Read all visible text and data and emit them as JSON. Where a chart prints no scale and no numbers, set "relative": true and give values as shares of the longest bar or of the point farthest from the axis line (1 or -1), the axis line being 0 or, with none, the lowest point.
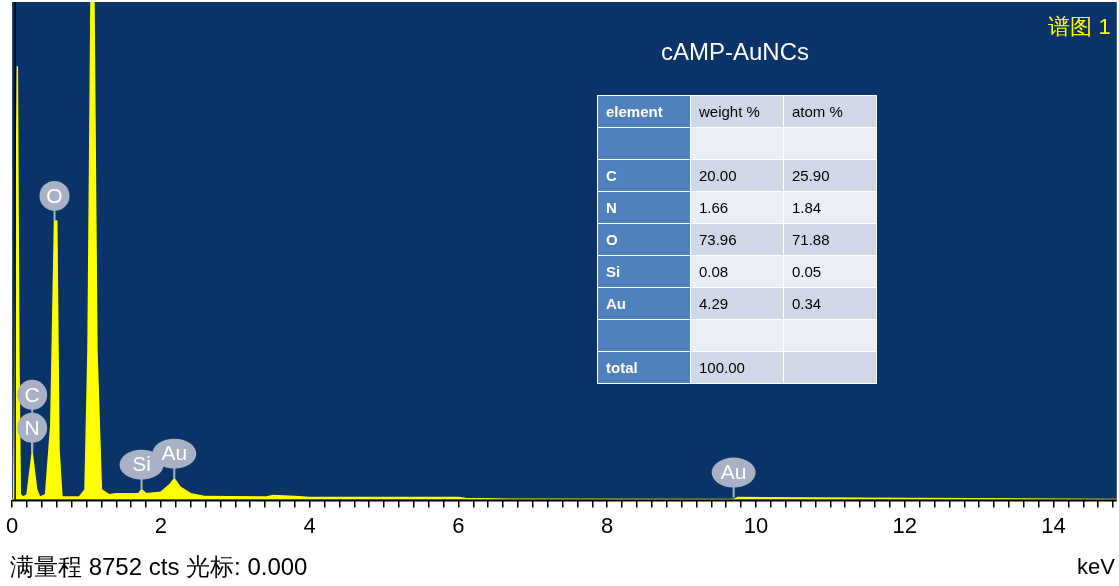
{
  "chart_data": [
    {
      "type": "area",
      "title": "cAMP-AuNCs",
      "xlabel": "keV",
      "relative": true,
      "grid": false,
      "legend": false,
      "marker": "none",
      "x": [
        0,
        0.02,
        0.05,
        0.07,
        0.09,
        0.11,
        0.15,
        0.2,
        0.27,
        0.33,
        0.37,
        0.45,
        0.52,
        0.57,
        0.6,
        0.63,
        0.67,
        0.9,
        0.98,
        1.02,
        1.06,
        1.1,
        1.14,
        1.2,
        1.3,
        1.4,
        1.7,
        1.74,
        1.8,
        2.0,
        2.12,
        2.18,
        2.26,
        2.4,
        2.6,
        3.4,
        3.5,
        3.8,
        4.0,
        6.0,
        6.1,
        6.5,
        9.6,
        9.7,
        9.75,
        14.85
      ],
      "series": [
        {
          "color": "#ffff00",
          "values": [
            0,
            0,
            0.5,
            0.87,
            0.3,
            0.01,
            0.005,
            0.01,
            0.094,
            0.02,
            0.005,
            0.01,
            0.15,
            0.56,
            0.56,
            0.1,
            0.005,
            0.005,
            0.02,
            0.3,
            1,
            1,
            0.3,
            0.02,
            0.01,
            0.012,
            0.012,
            0.02,
            0.012,
            0.015,
            0.03,
            0.042,
            0.025,
            0.012,
            0.006,
            0.005,
            0.008,
            0.006,
            0.004,
            0.004,
            0.002,
            0.001,
            0,
            0,
            0.004,
            0
          ]
        }
      ],
      "xlim": [
        0,
        14.85
      ],
      "xticks": [
        0,
        {
          "value": 0.2,
          "label": null
        },
        {
          "value": 0.4,
          "label": null
        },
        {
          "value": 0.6,
          "label": null
        },
        {
          "value": 0.8,
          "label": null
        },
        {
          "value": 1,
          "label": null
        },
        {
          "value": 1.2,
          "label": null
        },
        {
          "value": 1.4,
          "label": null
        },
        {
          "value": 1.6,
          "label": null
        },
        {
          "value": 1.8,
          "label": null
        },
        2,
        {
          "value": 2.2,
          "label": null
        },
        {
          "value": 2.4,
          "label": null
        },
        {
          "value": 2.6,
          "label": null
        },
        {
          "value": 2.8,
          "label": null
        },
        {
          "value": 3,
          "label": null
        },
        {
          "value": 3.2,
          "label": null
        },
        {
          "value": 3.4,
          "label": null
        },
        {
          "value": 3.6,
          "label": null
        },
        {
          "value": 3.8,
          "label": null
        },
        4,
        {
          "value": 4.2,
          "label": null
        },
        {
          "value": 4.4,
          "label": null
        },
        {
          "value": 4.6,
          "label": null
        },
        {
          "value": 4.8,
          "label": null
        },
        {
          "value": 5,
          "label": null
        },
        {
          "value": 5.2,
          "label": null
        },
        {
          "value": 5.4,
          "label": null
        },
        {
          "value": 5.6,
          "label": null
        },
        {
          "value": 5.8,
          "label": null
        },
        6,
        {
          "value": 6.2,
          "label": null
        },
        {
          "value": 6.4,
          "label": null
        },
        {
          "value": 6.6,
          "label": null
        },
        {
          "value": 6.8,
          "label": null
        },
        {
          "value": 7,
          "label": null
        },
        {
          "value": 7.2,
          "label": null
        },
        {
          "value": 7.4,
          "label": null
        },
        {
          "value": 7.6,
          "label": null
        },
        {
          "value": 7.8,
          "label": null
        },
        8,
        {
          "value": 8.2,
          "label": null
        },
        {
          "value": 8.4,
          "label": null
        },
        {
          "value": 8.6,
          "label": null
        },
        {
          "value": 8.8,
          "label": null
        },
        {
          "value": 9,
          "label": null
        },
        {
          "value": 9.2,
          "label": null
        },
        {
          "value": 9.4,
          "label": null
        },
        {
          "value": 9.6,
          "label": null
        },
        {
          "value": 9.8,
          "label": null
        },
        10,
        {
          "value": 10.2,
          "label": null
        },
        {
          "value": 10.4,
          "label": null
        },
        {
          "value": 10.6,
          "label": null
        },
        {
          "value": 10.8,
          "label": null
        },
        {
          "value": 11,
          "label": null
        },
        {
          "value": 11.2,
          "label": null
        },
        {
          "value": 11.4,
          "label": null
        },
        {
          "value": 11.6,
          "label": null
        },
        {
          "value": 11.8,
          "label": null
        },
        12,
        {
          "value": 12.2,
          "label": null
        },
        {
          "value": 12.4,
          "label": null
        },
        {
          "value": 12.6,
          "label": null
        },
        {
          "value": 12.8,
          "label": null
        },
        {
          "value": 13,
          "label": null
        },
        {
          "value": 13.2,
          "label": null
        },
        {
          "value": 13.4,
          "label": null
        },
        {
          "value": 13.6,
          "label": null
        },
        {
          "value": 13.8,
          "label": null
        },
        14,
        {
          "value": 14.2,
          "label": null
        },
        {
          "value": 14.4,
          "label": null
        },
        {
          "value": 14.6,
          "label": null
        },
        {
          "value": 14.8,
          "label": null
        }
      ],
      "ref_lines": [
        {
          "axis": "x",
          "value": 0,
          "color": "#000000"
        }
      ],
      "annotations": [
        "谱图 1",
        "满量程 8752 cts 光标: 0.000",
        {
          "text": "C",
          "x": 0.27,
          "y": 0.094
        },
        {
          "text": "N",
          "x": 0.27,
          "y": 0.094
        },
        {
          "text": "O",
          "x": 0.57,
          "y": 0.56
        },
        {
          "text": "Si",
          "x": 1.74,
          "y": 0.02
        },
        {
          "text": "Au",
          "x": 2.18,
          "y": 0.042
        },
        {
          "text": "Au",
          "x": 9.7,
          "y": 0.004
        }
      ]
    },
    {
      "type": "other",
      "categories": [
        "element",
        "weight %",
        "atom %"
      ],
      "cell_labels": [
        [
          null,
          null,
          null
        ],
        [
          "C",
          "20.00",
          "25.90"
        ],
        [
          "N",
          "1.66",
          "1.84"
        ],
        [
          "O",
          "73.96",
          "71.88"
        ],
        [
          "Si",
          "0.08",
          "0.05"
        ],
        [
          "Au",
          "4.29",
          "0.34"
        ],
        [
          null,
          null,
          null
        ],
        [
          "total",
          "100.00",
          null
        ]
      ]
    }
  ]
}
